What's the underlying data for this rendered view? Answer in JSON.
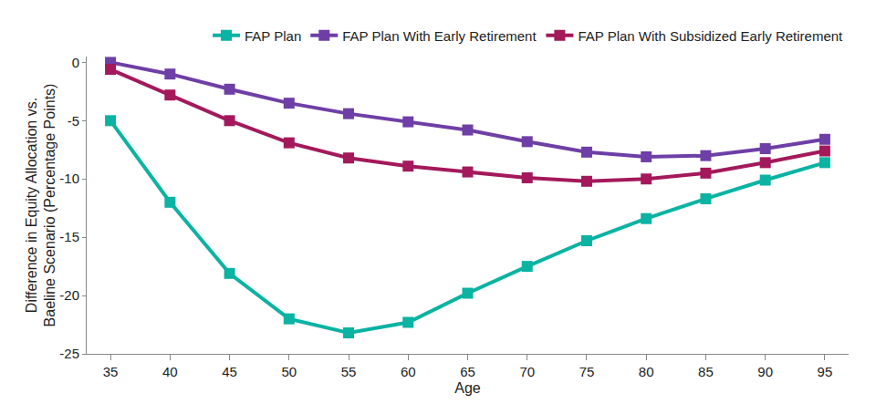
{
  "chart_data": {
    "type": "line",
    "x_label": "Age",
    "y_label": "Difference in Equity Allocation vs.\nBaeline Scenario (Percentage Points)",
    "x": [
      35,
      40,
      45,
      50,
      55,
      60,
      65,
      70,
      75,
      80,
      85,
      90,
      95
    ],
    "xlim": [
      33,
      97
    ],
    "xticks": [
      35,
      40,
      45,
      50,
      55,
      60,
      65,
      70,
      75,
      80,
      85,
      90,
      95
    ],
    "ylim": [
      -25,
      0.5
    ],
    "yticks": [
      -25,
      -20,
      -15,
      -10,
      -5,
      0
    ],
    "grid": false,
    "legend": "top-right",
    "marker": "square",
    "series": [
      {
        "name": "FAP Plan",
        "color": "#0ab3a2",
        "values": [
          -5.0,
          -12.0,
          -18.1,
          -22.0,
          -23.2,
          -22.3,
          -19.8,
          -17.5,
          -15.3,
          -13.4,
          -11.7,
          -10.1,
          -8.6
        ]
      },
      {
        "name": "FAP Plan With Early Retirement",
        "color": "#6e3fa6",
        "values": [
          0.0,
          -1.0,
          -2.3,
          -3.5,
          -4.4,
          -5.1,
          -5.8,
          -6.8,
          -7.7,
          -8.1,
          -8.0,
          -7.4,
          -6.6
        ]
      },
      {
        "name": "FAP Plan With Subsidized Early Retirement",
        "color": "#a3195b",
        "values": [
          -0.6,
          -2.8,
          -5.0,
          -6.9,
          -8.2,
          -8.9,
          -9.4,
          -9.9,
          -10.2,
          -10.0,
          -9.5,
          -8.6,
          -7.6
        ]
      }
    ]
  }
}
